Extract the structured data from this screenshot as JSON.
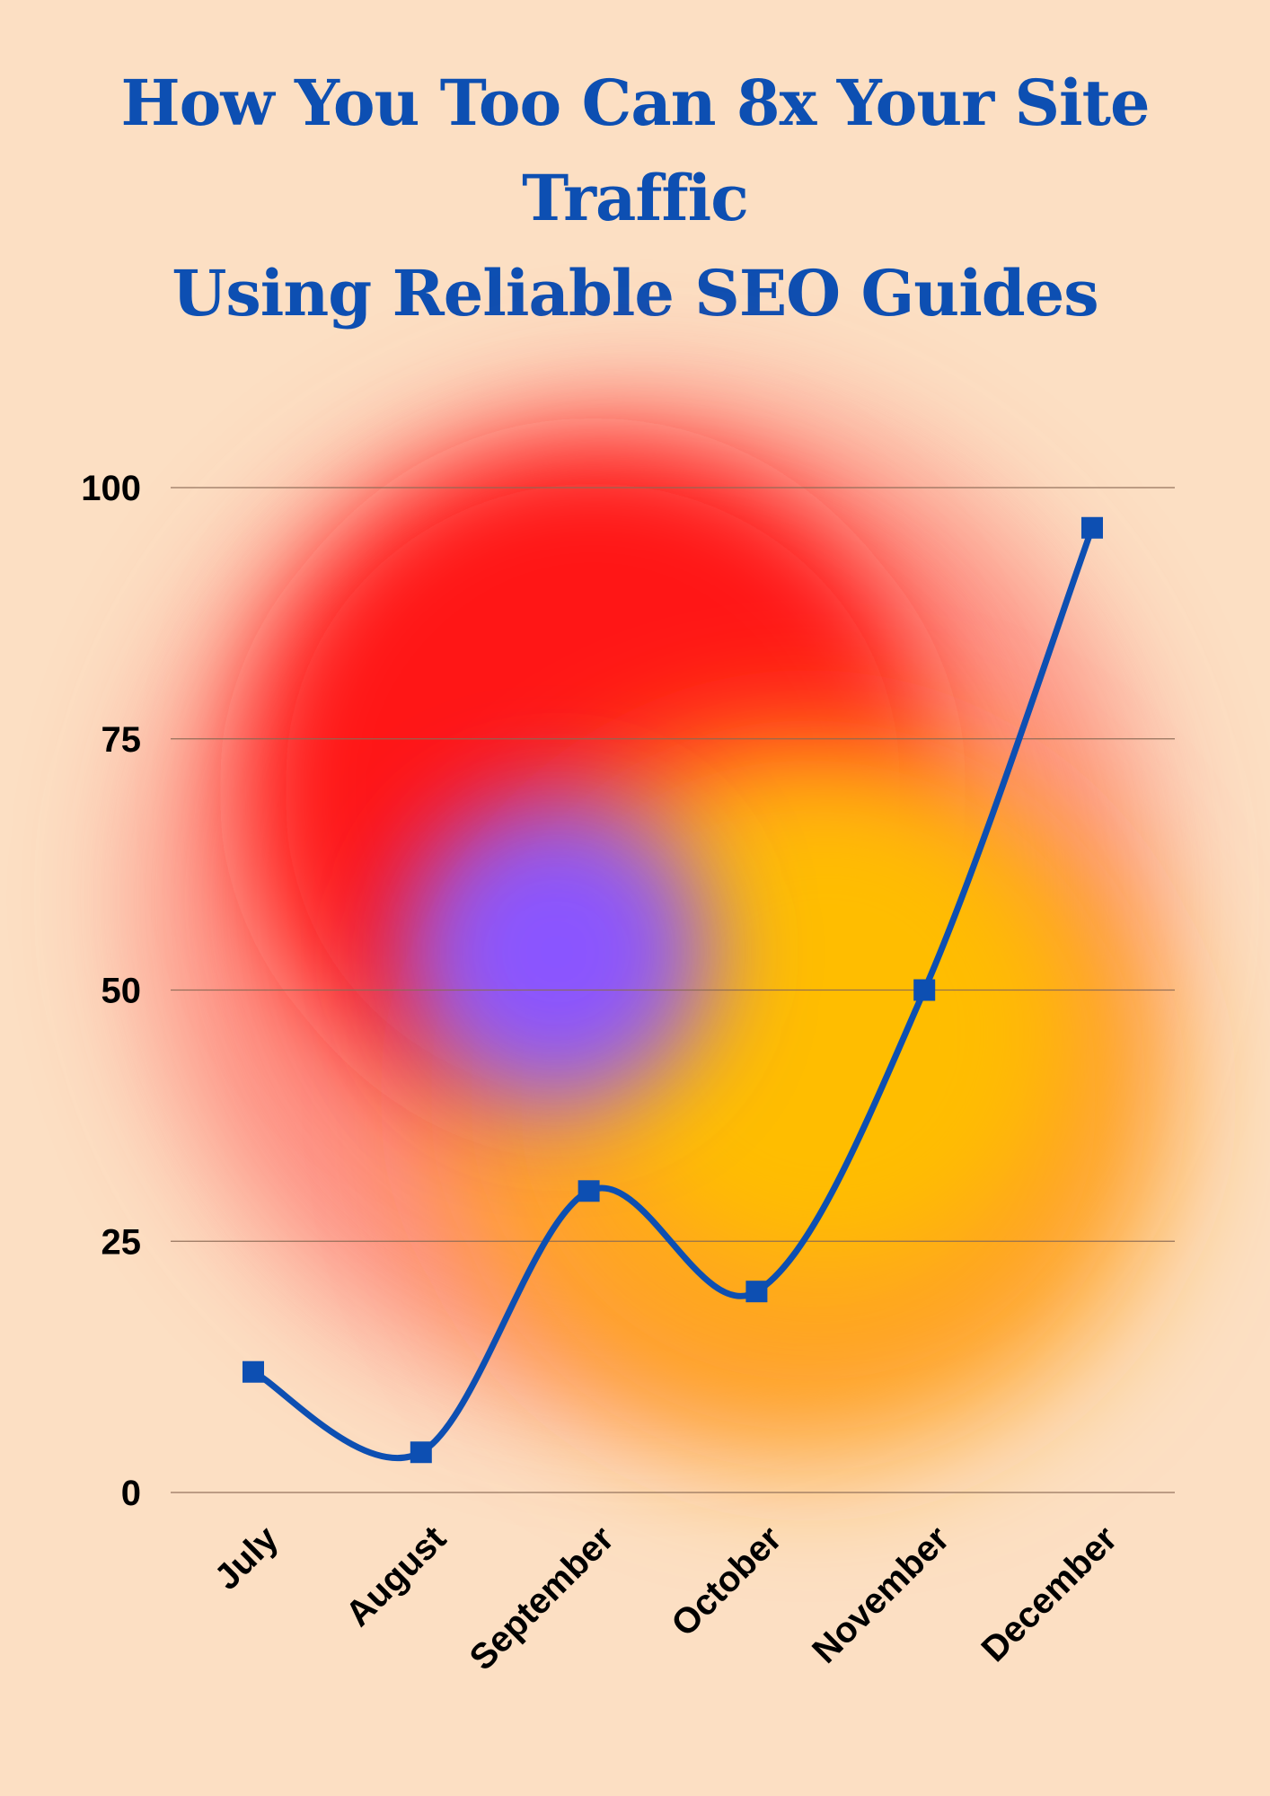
{
  "title": {
    "line1": "How You Too Can 8x Your Site Traffic",
    "line2": "Using Reliable SEO Guides"
  },
  "colors": {
    "background": "#fcdfc3",
    "title": "#0d4fb2",
    "line": "#0d4fb2",
    "gridline": "#8a6a55",
    "axis_text": "#000000"
  },
  "chart_data": {
    "type": "line",
    "title": "How You Too Can 8x Your Site Traffic Using Reliable SEO Guides",
    "categories": [
      "July",
      "August",
      "September",
      "October",
      "November",
      "December"
    ],
    "series": [
      {
        "values": [
          12,
          4,
          30,
          20,
          50,
          96
        ]
      }
    ],
    "yticks": [
      0,
      25,
      50,
      75,
      100
    ],
    "ylim": [
      0,
      100
    ],
    "xlabel": "",
    "ylabel": "",
    "grid": true,
    "smooth": true,
    "marker": "square"
  }
}
